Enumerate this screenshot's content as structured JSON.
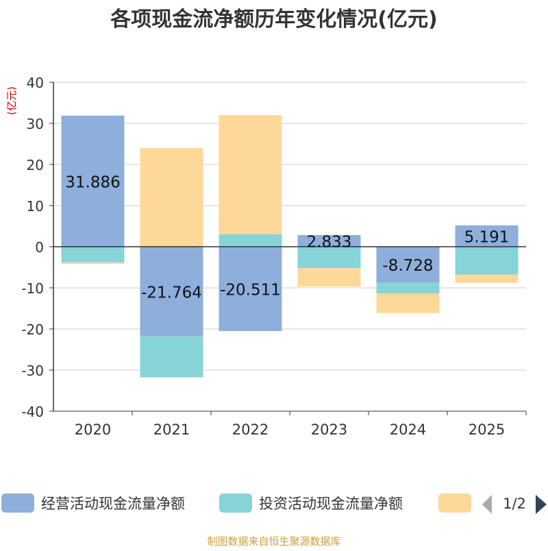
{
  "chart_data": {
    "type": "bar",
    "stacked": true,
    "title": "各项现金流净额历年变化情况(亿元)",
    "ylabel": "(亿元)",
    "xlabel": "",
    "ylim": [
      -40,
      40
    ],
    "yticks": [
      40,
      30,
      20,
      10,
      0,
      -10,
      -20,
      -30,
      -40
    ],
    "categories": [
      "2020",
      "2021",
      "2022",
      "2023",
      "2024",
      "2025"
    ],
    "series": [
      {
        "name": "经营活动现金流量净额",
        "color": "#8eaedb",
        "values": [
          31.886,
          -21.764,
          -20.511,
          2.833,
          -8.728,
          5.191
        ],
        "labels": [
          "31.886",
          "-21.764",
          "-20.511",
          "2.833",
          "-8.728",
          "5.191"
        ]
      },
      {
        "name": "投资活动现金流量净额",
        "color": "#86d4d7",
        "values": [
          -3.8,
          -10.0,
          3.0,
          -5.2,
          -2.6,
          -6.8
        ]
      },
      {
        "name": "",
        "color": "#fed899",
        "values": [
          -0.4,
          24.0,
          29.0,
          -4.5,
          -4.8,
          -2.0
        ]
      }
    ],
    "legend": {
      "position": "bottom",
      "page": "1/2"
    },
    "grid": true
  },
  "source": "制图数据来自恒生聚源数据库"
}
